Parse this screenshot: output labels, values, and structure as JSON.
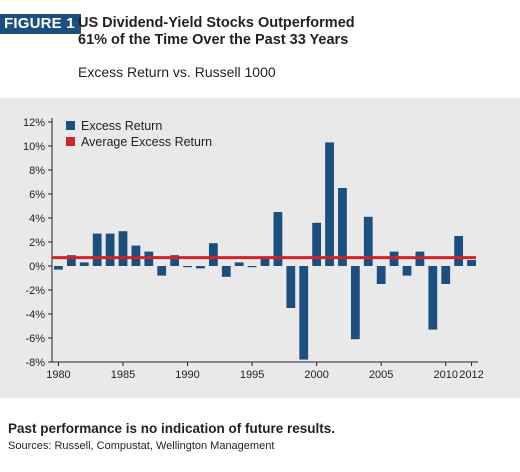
{
  "figure": {
    "badge": "FIGURE 1",
    "title": "US Dividend-Yield Stocks Outperformed\n61% of the Time Over the Past 33 Years",
    "subtitle": "Excess Return vs. Russell 1000",
    "badge_color": "#1b4f7d"
  },
  "footer": {
    "note": "Past performance is no indication of future results.",
    "sources": "Sources: Russell, Compustat, Wellington Management"
  },
  "chart_data": {
    "type": "bar",
    "title": "Excess Return vs. Russell 1000",
    "x": [
      1980,
      1981,
      1982,
      1983,
      1984,
      1985,
      1986,
      1987,
      1988,
      1989,
      1990,
      1991,
      1992,
      1993,
      1994,
      1995,
      1996,
      1997,
      1998,
      1999,
      2000,
      2001,
      2002,
      2003,
      2004,
      2005,
      2006,
      2007,
      2008,
      2009,
      2010,
      2011,
      2012
    ],
    "xticks": [
      "1980",
      "1985",
      "1990",
      "1995",
      "2000",
      "2005",
      "2010",
      "2012"
    ],
    "xtick_years": [
      1980,
      1985,
      1990,
      1995,
      2000,
      2005,
      2010,
      2012
    ],
    "yticks": [
      "12%",
      "10%",
      "8%",
      "6%",
      "4%",
      "2%",
      "0%",
      "-2%",
      "-4%",
      "-6%",
      "-8%"
    ],
    "ytick_values": [
      12,
      10,
      8,
      6,
      4,
      2,
      0,
      -2,
      -4,
      -6,
      -8
    ],
    "ylim": [
      -8,
      12
    ],
    "series": [
      {
        "name": "Excess Return",
        "color": "#1b4f7d",
        "values": [
          -0.3,
          0.9,
          0.3,
          2.7,
          2.7,
          2.9,
          1.7,
          1.2,
          -0.8,
          0.9,
          -0.1,
          -0.2,
          1.9,
          -0.9,
          0.3,
          -0.1,
          0.6,
          4.5,
          -3.5,
          -7.8,
          3.6,
          10.3,
          6.5,
          -6.1,
          4.1,
          -1.5,
          1.2,
          -0.8,
          1.2,
          -5.3,
          -1.5,
          2.5,
          0.5
        ]
      },
      {
        "name": "Average Excess Return",
        "color": "#d2232a",
        "value": 0.7
      }
    ],
    "legend_position": "top-left",
    "grid": false
  }
}
